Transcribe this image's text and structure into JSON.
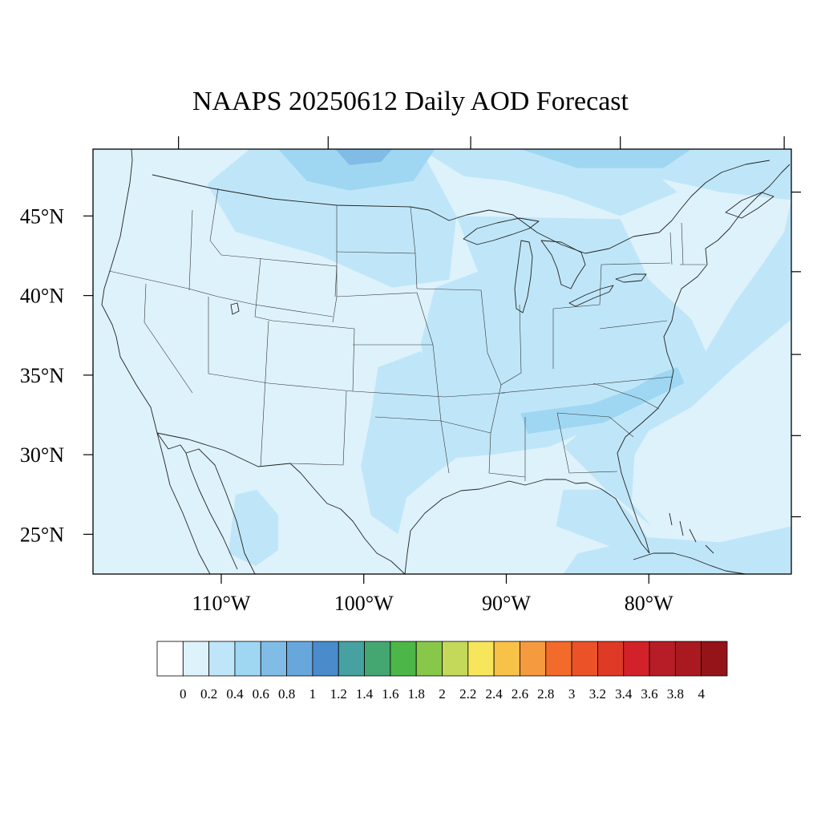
{
  "title": "NAAPS 20250612 Daily AOD Forecast",
  "map": {
    "lon_range": [
      -119,
      -70
    ],
    "lat_range": [
      22.5,
      49.2
    ],
    "lat_ticks": [
      {
        "value": 45,
        "label": "45°N"
      },
      {
        "value": 40,
        "label": "40°N"
      },
      {
        "value": 35,
        "label": "35°N"
      },
      {
        "value": 30,
        "label": "30°N"
      },
      {
        "value": 25,
        "label": "25°N"
      }
    ],
    "lon_ticks": [
      {
        "value": -110,
        "label": "110°W"
      },
      {
        "value": -100,
        "label": "100°W"
      },
      {
        "value": -90,
        "label": "90°W"
      },
      {
        "value": -80,
        "label": "80°W"
      }
    ],
    "field": {
      "background_level": 1,
      "patches": [
        {
          "name": "northern-plains",
          "level": 2,
          "poly": [
            [
              -104,
              49.2
            ],
            [
              -96,
              49.2
            ],
            [
              -93.5,
              45
            ],
            [
              -94,
              41
            ],
            [
              -98,
              40.5
            ],
            [
              -103,
              42.5
            ],
            [
              -109,
              44
            ],
            [
              -111,
              47
            ],
            [
              -108,
              49.2
            ]
          ]
        },
        {
          "name": "canada-border",
          "level": 2,
          "poly": [
            [
              -96,
              49.2
            ],
            [
              -86,
              49.2
            ],
            [
              -80,
              48
            ],
            [
              -78,
              46.5
            ],
            [
              -82,
              45
            ],
            [
              -86,
              46.3
            ],
            [
              -90,
              47.2
            ],
            [
              -93,
              47.5
            ]
          ]
        },
        {
          "name": "north-canada",
          "level": 2,
          "poly": [
            [
              -95,
              49.2
            ],
            [
              -70,
              49.2
            ],
            [
              -70,
              46
            ],
            [
              -75,
              46.5
            ],
            [
              -80,
              47.5
            ],
            [
              -86,
              48.2
            ]
          ]
        },
        {
          "name": "north-dakota-smoke",
          "level": 3,
          "poly": [
            [
              -106,
              49.2
            ],
            [
              -95,
              49.2
            ],
            [
              -96.5,
              47.2
            ],
            [
              -101,
              46.6
            ],
            [
              -104,
              47.2
            ]
          ]
        },
        {
          "name": "canada-smoke",
          "level": 3,
          "poly": [
            [
              -89,
              49.2
            ],
            [
              -77,
              49.2
            ],
            [
              -79,
              48
            ],
            [
              -85,
              48
            ]
          ]
        },
        {
          "name": "ontario-core",
          "level": 4,
          "poly": [
            [
              -102,
              49.2
            ],
            [
              -98,
              49.2
            ],
            [
              -98.8,
              48.4
            ],
            [
              -101,
              48.2
            ]
          ]
        },
        {
          "name": "east-midwest",
          "level": 2,
          "poly": [
            [
              -93.5,
              45
            ],
            [
              -82,
              44.8
            ],
            [
              -80,
              41
            ],
            [
              -77,
              38.5
            ],
            [
              -76,
              36.5
            ],
            [
              -80,
              34
            ],
            [
              -83,
              32
            ],
            [
              -87,
              30.5
            ],
            [
              -91,
              30
            ],
            [
              -93.5,
              29.8
            ],
            [
              -95,
              32
            ],
            [
              -96,
              37
            ],
            [
              -95,
              40.5
            ],
            [
              -92,
              41.5
            ]
          ]
        },
        {
          "name": "atlantic",
          "level": 2,
          "poly": [
            [
              -70,
              46
            ],
            [
              -70,
              38.5
            ],
            [
              -74,
              35.5
            ],
            [
              -77,
              33
            ],
            [
              -80,
              31.5
            ],
            [
              -81,
              30
            ],
            [
              -81.2,
              27
            ],
            [
              -79.8,
              25.5
            ],
            [
              -83,
              27.8
            ],
            [
              -86,
              30.5
            ],
            [
              -84,
              32
            ],
            [
              -80,
              34
            ],
            [
              -76,
              36.5
            ],
            [
              -74,
              39.5
            ],
            [
              -72,
              42
            ],
            [
              -70.5,
              44
            ]
          ]
        },
        {
          "name": "south-plains",
          "level": 2,
          "poly": [
            [
              -99,
              35.5
            ],
            [
              -96,
              36.5
            ],
            [
              -94,
              34
            ],
            [
              -93.5,
              29.8
            ],
            [
              -95,
              28.8
            ],
            [
              -97,
              27.3
            ],
            [
              -97.6,
              25
            ],
            [
              -99.5,
              26.2
            ],
            [
              -100.2,
              29.3
            ],
            [
              -99.5,
              32.5
            ]
          ]
        },
        {
          "name": "mexico-south",
          "level": 2,
          "poly": [
            [
              -109,
              27.5
            ],
            [
              -107.5,
              27.8
            ],
            [
              -106,
              26.2
            ],
            [
              -106,
              24
            ],
            [
              -107.6,
              23
            ],
            [
              -109.5,
              23.8
            ]
          ]
        },
        {
          "name": "georgia-band",
          "level": 3,
          "poly": [
            [
              -89,
              32.6
            ],
            [
              -84,
              33.2
            ],
            [
              -81,
              34.2
            ],
            [
              -79.5,
              35
            ],
            [
              -78,
              35.5
            ],
            [
              -77.5,
              34.5
            ],
            [
              -80,
              33.4
            ],
            [
              -83.2,
              32
            ],
            [
              -88.5,
              31.3
            ]
          ]
        },
        {
          "name": "florida-west",
          "level": 2,
          "poly": [
            [
              -86,
              27.8
            ],
            [
              -83,
              27.8
            ],
            [
              -81.2,
              26.2
            ],
            [
              -80,
              24.7
            ],
            [
              -82,
              24
            ],
            [
              -86.5,
              25.5
            ]
          ]
        },
        {
          "name": "caribbean",
          "level": 2,
          "poly": [
            [
              -85,
              23.8
            ],
            [
              -80,
              24.8
            ],
            [
              -75,
              24.5
            ],
            [
              -70,
              25.5
            ],
            [
              -70,
              22.5
            ],
            [
              -86,
              22.5
            ]
          ]
        }
      ]
    },
    "palette": [
      "#ffffff",
      "#def2fb",
      "#bfe6f8",
      "#9fd7f3",
      "#80bce6",
      "#68a7db",
      "#4a8bcb",
      "#46a1a0",
      "#44a772",
      "#4db648",
      "#87c84b",
      "#c4d85a",
      "#f7e65c",
      "#f8c148",
      "#f59a3e",
      "#f26b2a",
      "#eb5228",
      "#de3a26",
      "#d22129",
      "#b71d27",
      "#a81a1f",
      "#941419"
    ]
  },
  "colorbar": {
    "labels": [
      "0",
      "0.2",
      "0.4",
      "0.6",
      "0.8",
      "1",
      "1.2",
      "1.4",
      "1.6",
      "1.8",
      "2",
      "2.2",
      "2.4",
      "2.6",
      "2.8",
      "3",
      "3.2",
      "3.4",
      "3.6",
      "3.8",
      "4"
    ]
  }
}
